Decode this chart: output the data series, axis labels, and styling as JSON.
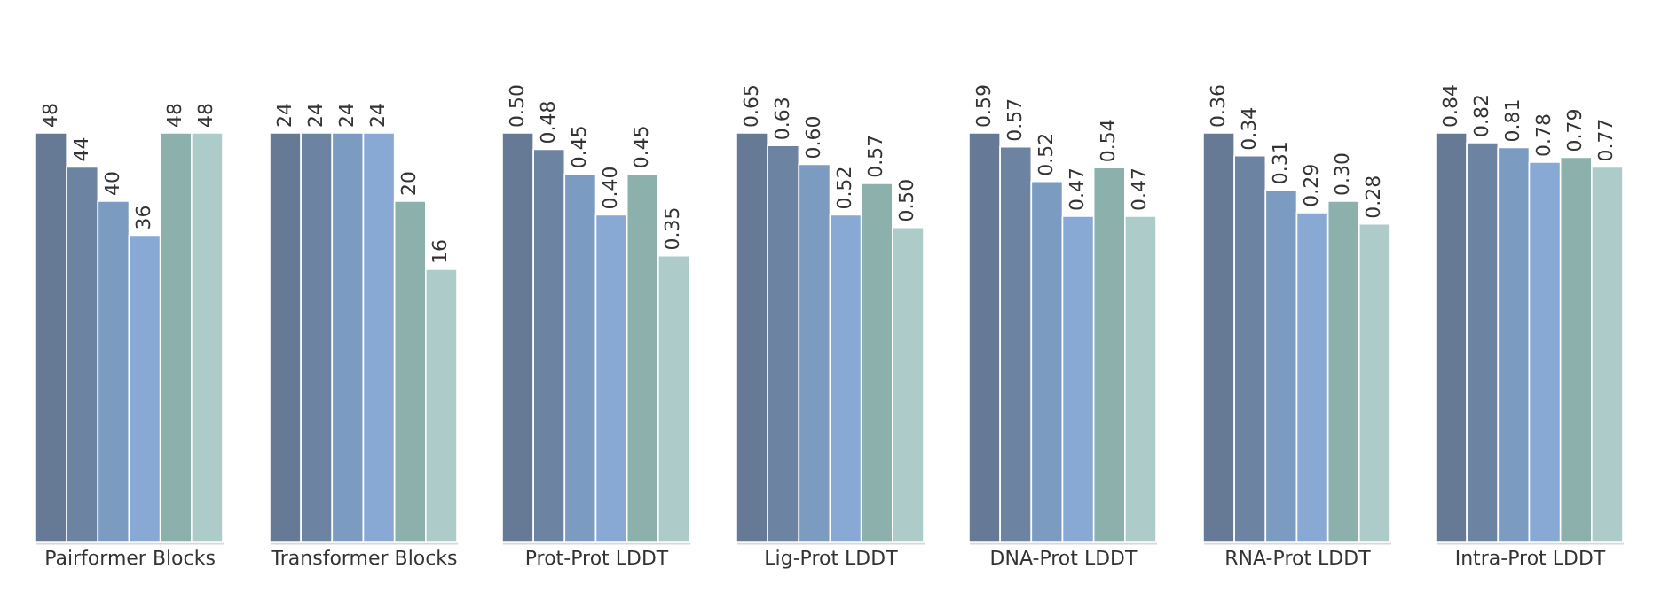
{
  "chart_data": [
    {
      "type": "bar",
      "xlabel": "Pairformer Blocks",
      "categories": [
        null,
        null,
        null,
        null,
        null,
        null
      ],
      "values": [
        48,
        44,
        40,
        36,
        48,
        48
      ],
      "value_labels": [
        "48",
        "44",
        "40",
        "36",
        "48",
        "48"
      ],
      "colors": [
        "#677a95",
        "#6c83a2",
        "#7b9bc0",
        "#87a9d4",
        "#8cb0ab",
        "#adcbc8"
      ]
    },
    {
      "type": "bar",
      "xlabel": "Transformer Blocks",
      "categories": [
        null,
        null,
        null,
        null,
        null,
        null
      ],
      "values": [
        24,
        24,
        24,
        24,
        20,
        16
      ],
      "value_labels": [
        "24",
        "24",
        "24",
        "24",
        "20",
        "16"
      ],
      "colors": [
        "#677a95",
        "#6c83a2",
        "#7b9bc0",
        "#87a9d4",
        "#8cb0ab",
        "#adcbc8"
      ]
    },
    {
      "type": "bar",
      "xlabel": "Prot-Prot LDDT",
      "categories": [
        null,
        null,
        null,
        null,
        null,
        null
      ],
      "values": [
        0.5,
        0.48,
        0.45,
        0.4,
        0.45,
        0.35
      ],
      "value_labels": [
        "0.50",
        "0.48",
        "0.45",
        "0.40",
        "0.45",
        "0.35"
      ],
      "colors": [
        "#677a95",
        "#6c83a2",
        "#7b9bc0",
        "#87a9d4",
        "#8cb0ab",
        "#adcbc8"
      ]
    },
    {
      "type": "bar",
      "xlabel": "Lig-Prot LDDT",
      "categories": [
        null,
        null,
        null,
        null,
        null,
        null
      ],
      "values": [
        0.65,
        0.63,
        0.6,
        0.52,
        0.57,
        0.5
      ],
      "value_labels": [
        "0.65",
        "0.63",
        "0.60",
        "0.52",
        "0.57",
        "0.50"
      ],
      "colors": [
        "#677a95",
        "#6c83a2",
        "#7b9bc0",
        "#87a9d4",
        "#8cb0ab",
        "#adcbc8"
      ]
    },
    {
      "type": "bar",
      "xlabel": "DNA-Prot LDDT",
      "categories": [
        null,
        null,
        null,
        null,
        null,
        null
      ],
      "values": [
        0.59,
        0.57,
        0.52,
        0.47,
        0.54,
        0.47
      ],
      "value_labels": [
        "0.59",
        "0.57",
        "0.52",
        "0.47",
        "0.54",
        "0.47"
      ],
      "colors": [
        "#677a95",
        "#6c83a2",
        "#7b9bc0",
        "#87a9d4",
        "#8cb0ab",
        "#adcbc8"
      ]
    },
    {
      "type": "bar",
      "xlabel": "RNA-Prot LDDT",
      "categories": [
        null,
        null,
        null,
        null,
        null,
        null
      ],
      "values": [
        0.36,
        0.34,
        0.31,
        0.29,
        0.3,
        0.28
      ],
      "value_labels": [
        "0.36",
        "0.34",
        "0.31",
        "0.29",
        "0.30",
        "0.28"
      ],
      "colors": [
        "#677a95",
        "#6c83a2",
        "#7b9bc0",
        "#87a9d4",
        "#8cb0ab",
        "#adcbc8"
      ]
    },
    {
      "type": "bar",
      "xlabel": "Intra-Prot LDDT",
      "categories": [
        null,
        null,
        null,
        null,
        null,
        null
      ],
      "values": [
        0.84,
        0.82,
        0.81,
        0.78,
        0.79,
        0.77
      ],
      "value_labels": [
        "0.84",
        "0.82",
        "0.81",
        "0.78",
        "0.79",
        "0.77"
      ],
      "colors": [
        "#677a95",
        "#6c83a2",
        "#7b9bc0",
        "#87a9d4",
        "#8cb0ab",
        "#adcbc8"
      ]
    }
  ]
}
